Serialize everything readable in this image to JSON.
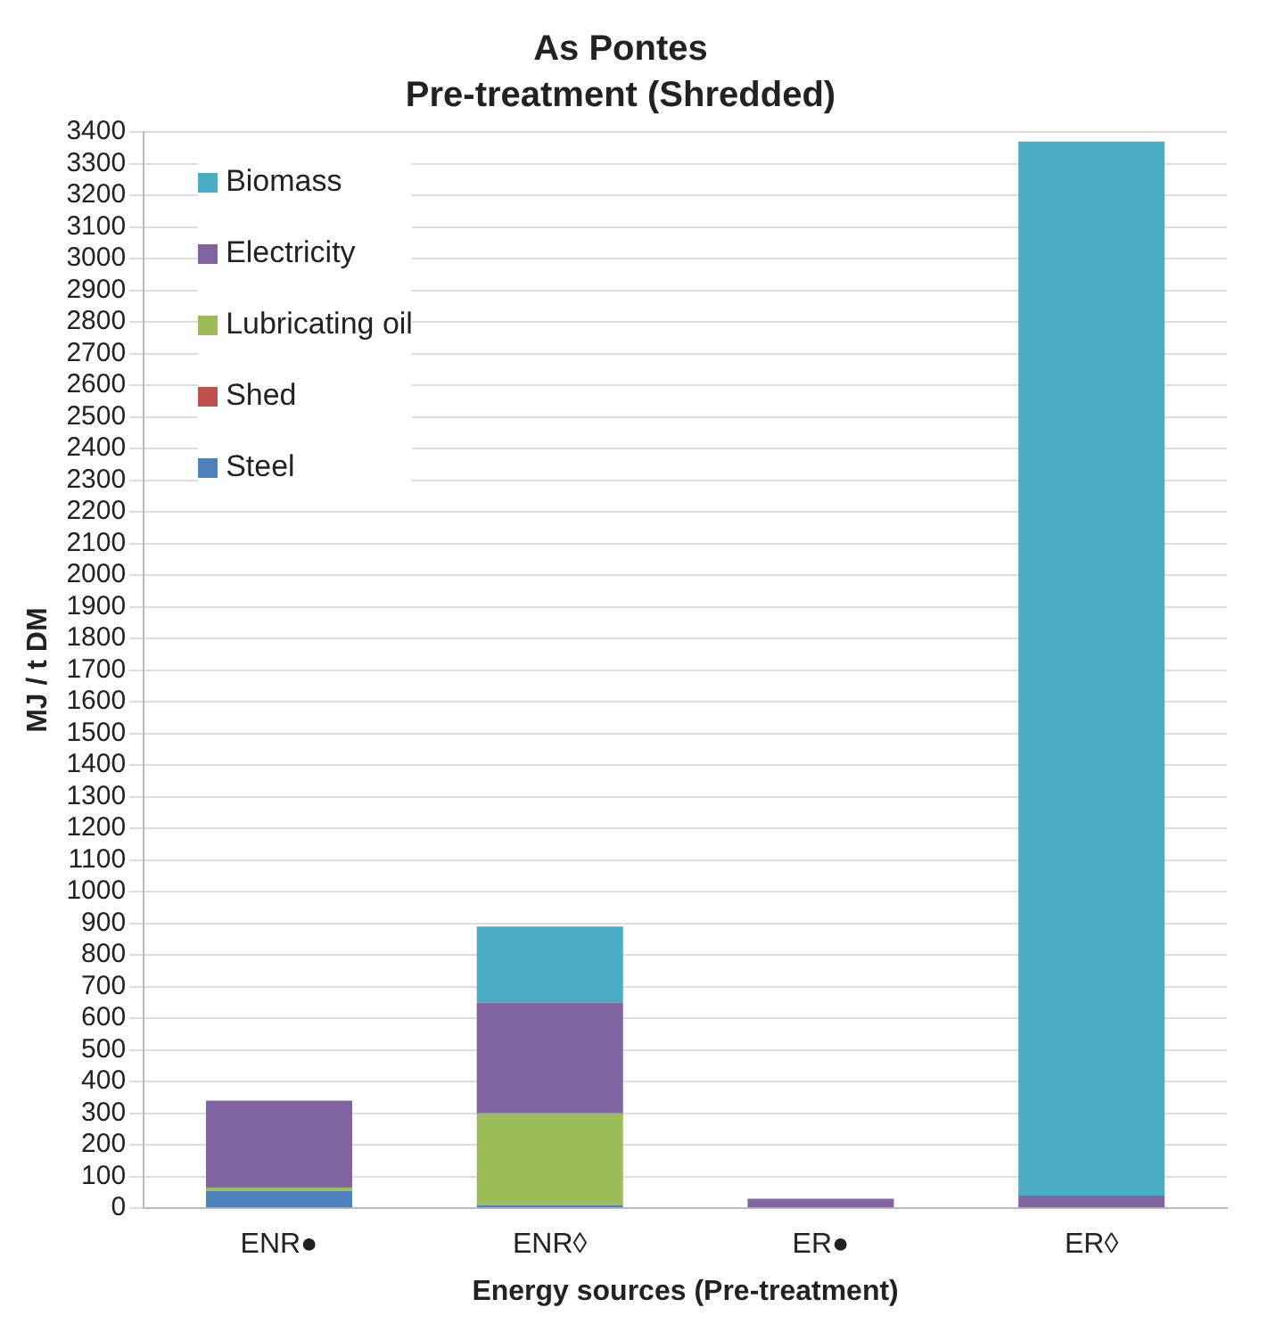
{
  "chart_data": {
    "type": "bar",
    "title": "As Pontes",
    "subtitle": "Pre-treatment (Shredded)",
    "xlabel": "Energy sources (Pre-treatment)",
    "ylabel": "MJ / t DM",
    "categories": [
      "ENR●",
      "ENR◊",
      "ER●",
      "ER◊"
    ],
    "series": [
      {
        "name": "Steel",
        "color": "#4f81bd",
        "values": [
          55,
          10,
          0,
          0
        ]
      },
      {
        "name": "Shed",
        "color": "#c0504d",
        "values": [
          0,
          0,
          0,
          0
        ]
      },
      {
        "name": "Lubricating oil",
        "color": "#9bbb59",
        "values": [
          10,
          290,
          0,
          0
        ]
      },
      {
        "name": "Electricity",
        "color": "#8064a2",
        "values": [
          275,
          350,
          30,
          40
        ]
      },
      {
        "name": "Biomass",
        "color": "#4bacc6",
        "values": [
          0,
          240,
          0,
          3330
        ]
      }
    ],
    "stacked": true,
    "ylim": [
      0,
      3400
    ],
    "yticks": [
      0,
      100,
      200,
      300,
      400,
      500,
      600,
      700,
      800,
      900,
      1000,
      1100,
      1200,
      1300,
      1400,
      1500,
      1600,
      1700,
      1800,
      1900,
      2000,
      2100,
      2200,
      2300,
      2400,
      2500,
      2600,
      2700,
      2800,
      2900,
      3000,
      3100,
      3200,
      3300,
      3400
    ],
    "grid": "y",
    "legend": "top left"
  }
}
